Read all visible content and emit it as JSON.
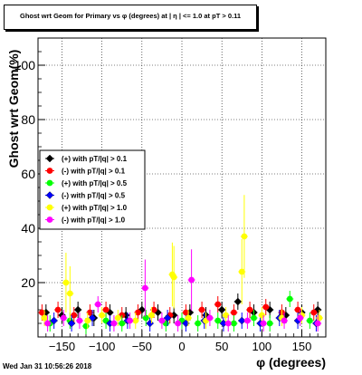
{
  "chart_data": {
    "type": "scatter",
    "title": "Ghost wrt Geom for Primary vs φ (degrees) at | η | <= 1.0 at pT > 0.11",
    "xlabel": "φ (degrees)",
    "ylabel": "Ghost wrt Geom(%)",
    "xlim": [
      -180,
      180
    ],
    "ylim": [
      0,
      110
    ],
    "x_ticks": [
      -150,
      -100,
      -50,
      0,
      50,
      100,
      150
    ],
    "y_ticks": [
      20,
      40,
      60,
      80,
      100
    ],
    "grid": true,
    "legend_position": "left-middle",
    "series": [
      {
        "name": "(+) with pT/|q| > 0.1",
        "color": "#000000",
        "marker": "diamond",
        "points": [
          [
            -170,
            9
          ],
          [
            -150,
            8
          ],
          [
            -130,
            10
          ],
          [
            -110,
            7
          ],
          [
            -90,
            9
          ],
          [
            -70,
            8
          ],
          [
            -50,
            10
          ],
          [
            -30,
            9
          ],
          [
            -10,
            8
          ],
          [
            10,
            9
          ],
          [
            30,
            8
          ],
          [
            50,
            10
          ],
          [
            70,
            13
          ],
          [
            90,
            9
          ],
          [
            110,
            10
          ],
          [
            130,
            8
          ],
          [
            150,
            9
          ],
          [
            170,
            10
          ]
        ]
      },
      {
        "name": "(-) with pT/|q| > 0.1",
        "color": "#ff0000",
        "marker": "circle",
        "points": [
          [
            -175,
            9
          ],
          [
            -155,
            10
          ],
          [
            -135,
            8
          ],
          [
            -115,
            9
          ],
          [
            -95,
            10
          ],
          [
            -75,
            8
          ],
          [
            -55,
            9
          ],
          [
            -35,
            10
          ],
          [
            -15,
            8
          ],
          [
            5,
            9
          ],
          [
            25,
            10
          ],
          [
            45,
            12
          ],
          [
            65,
            9
          ],
          [
            85,
            10
          ],
          [
            105,
            11
          ],
          [
            125,
            9
          ],
          [
            145,
            10
          ],
          [
            165,
            9
          ]
        ]
      },
      {
        "name": "(+) with pT/|q| > 0.5",
        "color": "#00ff00",
        "marker": "circle",
        "points": [
          [
            -165,
            5
          ],
          [
            -140,
            6
          ],
          [
            -120,
            4
          ],
          [
            -95,
            6
          ],
          [
            -75,
            5
          ],
          [
            -45,
            7
          ],
          [
            -20,
            5
          ],
          [
            0,
            6
          ],
          [
            20,
            5
          ],
          [
            45,
            6
          ],
          [
            65,
            5
          ],
          [
            90,
            7
          ],
          [
            110,
            5
          ],
          [
            135,
            14
          ],
          [
            160,
            6
          ]
        ]
      },
      {
        "name": "(-) with pT/|q| > 0.5",
        "color": "#0000ff",
        "marker": "diamond",
        "points": [
          [
            -160,
            6
          ],
          [
            -138,
            5
          ],
          [
            -112,
            7
          ],
          [
            -90,
            5
          ],
          [
            -68,
            6
          ],
          [
            -40,
            5
          ],
          [
            -18,
            7
          ],
          [
            5,
            5
          ],
          [
            28,
            6
          ],
          [
            52,
            5
          ],
          [
            75,
            6
          ],
          [
            98,
            5
          ],
          [
            122,
            7
          ],
          [
            145,
            6
          ],
          [
            168,
            5
          ]
        ]
      },
      {
        "name": "(+) with pT/|q| > 1.0",
        "color": "#ffff00",
        "marker": "circle",
        "points": [
          [
            -172,
            7
          ],
          [
            -145,
            20
          ],
          [
            -140,
            16
          ],
          [
            -118,
            6
          ],
          [
            -100,
            8
          ],
          [
            -80,
            7
          ],
          [
            -58,
            6
          ],
          [
            -38,
            8
          ],
          [
            -12,
            23
          ],
          [
            -10,
            22
          ],
          [
            8,
            7
          ],
          [
            30,
            6
          ],
          [
            55,
            8
          ],
          [
            75,
            24
          ],
          [
            78,
            37
          ],
          [
            100,
            8
          ],
          [
            125,
            7
          ],
          [
            150,
            8
          ],
          [
            172,
            7
          ]
        ]
      },
      {
        "name": "(-) with pT/|q| > 1.0",
        "color": "#ff00ff",
        "marker": "circle",
        "points": [
          [
            -168,
            5
          ],
          [
            -148,
            7
          ],
          [
            -128,
            6
          ],
          [
            -105,
            12
          ],
          [
            -85,
            5
          ],
          [
            -65,
            6
          ],
          [
            -46,
            18
          ],
          [
            -25,
            6
          ],
          [
            -5,
            5
          ],
          [
            12,
            21
          ],
          [
            35,
            7
          ],
          [
            58,
            5
          ],
          [
            82,
            6
          ],
          [
            102,
            5
          ],
          [
            128,
            6
          ],
          [
            148,
            7
          ],
          [
            170,
            5
          ]
        ]
      }
    ]
  },
  "footer": {
    "timestamp": "Wed Jan 31 10:56:26 2018"
  }
}
